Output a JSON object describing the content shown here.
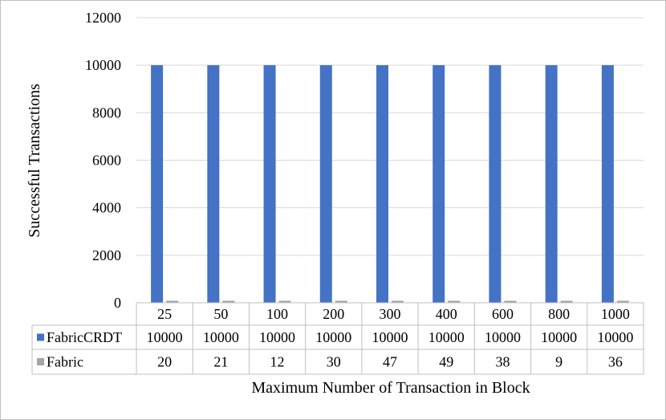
{
  "chart_data": {
    "type": "bar",
    "title": "",
    "xlabel": "Maximum Number of Transaction in Block",
    "ylabel": "Successful Transactions",
    "ylim": [
      0,
      12000
    ],
    "yticks": [
      0,
      2000,
      4000,
      6000,
      8000,
      10000,
      12000
    ],
    "grid": true,
    "legend": "data-table",
    "categories": [
      "25",
      "50",
      "100",
      "200",
      "300",
      "400",
      "600",
      "800",
      "1000"
    ],
    "series": [
      {
        "name": "FabricCRDT",
        "color": "#4472C4",
        "values": [
          10000,
          10000,
          10000,
          10000,
          10000,
          10000,
          10000,
          10000,
          10000
        ]
      },
      {
        "name": "Fabric",
        "color": "#A5A5A5",
        "values": [
          20,
          21,
          12,
          30,
          47,
          49,
          38,
          9,
          36
        ]
      }
    ]
  }
}
